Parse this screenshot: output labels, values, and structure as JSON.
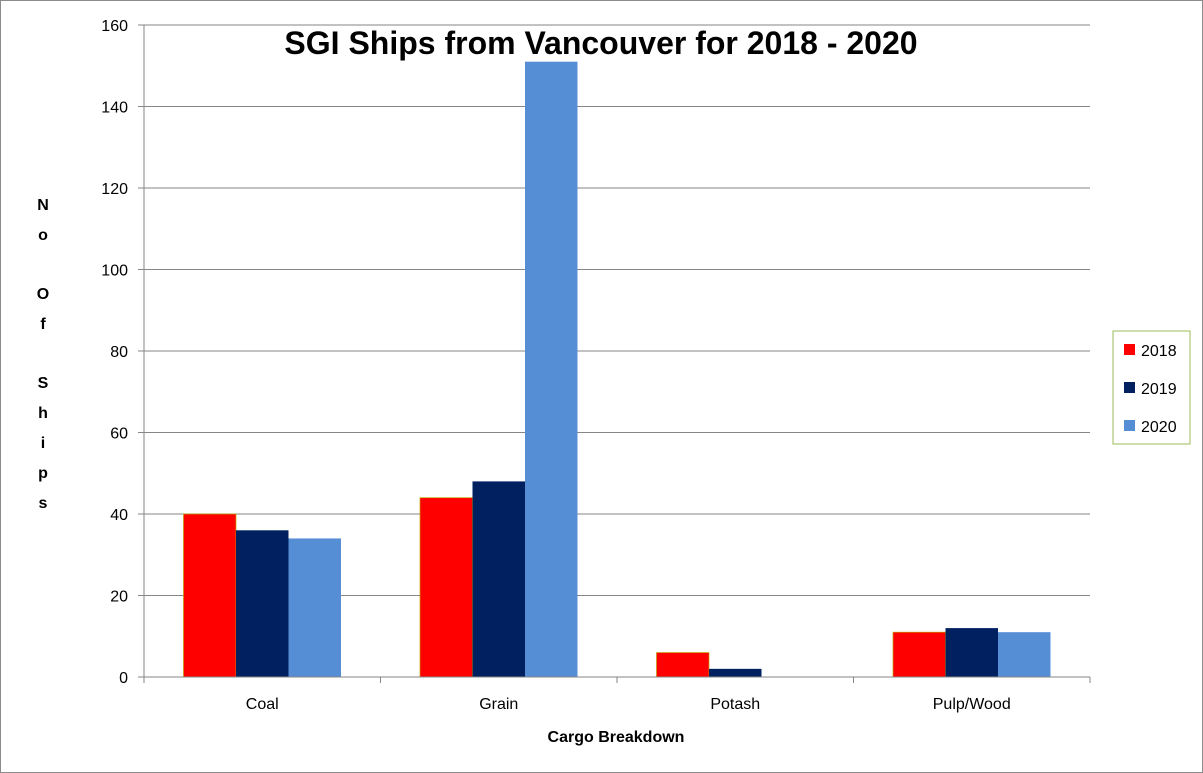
{
  "chart_data": {
    "type": "bar",
    "title": "SGI Ships from Vancouver for 2018 - 2020",
    "xlabel": "Cargo Breakdown",
    "ylabel": "No Of Ships",
    "categories": [
      "Coal",
      "Grain",
      "Potash",
      "Pulp/Wood"
    ],
    "series": [
      {
        "name": "2018",
        "color": "#ff0000",
        "values": [
          40,
          44,
          6,
          11
        ]
      },
      {
        "name": "2019",
        "color": "#002060",
        "values": [
          36,
          48,
          2,
          12
        ]
      },
      {
        "name": "2020",
        "color": "#558ed5",
        "values": [
          34,
          151,
          0,
          11
        ]
      }
    ],
    "ylim": [
      0,
      160
    ],
    "yticks": [
      0,
      20,
      40,
      60,
      80,
      100,
      120,
      140,
      160
    ],
    "grid": true,
    "legend": "right"
  }
}
